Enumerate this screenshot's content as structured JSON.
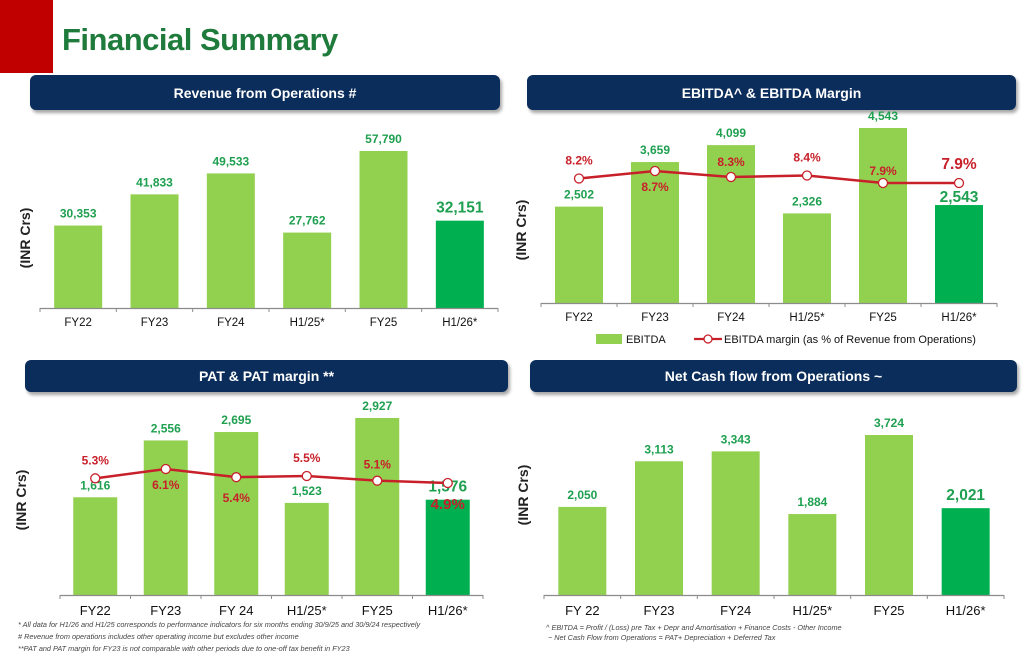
{
  "page": {
    "title": "Financial Summary",
    "accent_colors": {
      "title_green": "#1E7B3C",
      "header_navy": "#0B2D5B",
      "red_block": "#C00000",
      "bar_light_green": "#92D050",
      "bar_dark_green": "#00B050",
      "value_label_green": "#1FA050",
      "margin_red": "#C8202A"
    }
  },
  "footnotes_left": [
    "* All data for H1/26 and H1/25 corresponds to performance indicators for six months ending 30/9/25 and 30/9/24 respectively",
    "# Revenue from operations includes other operating income but excludes other income",
    "**PAT and PAT margin for FY23 is not comparable with other periods due to one-off tax benefit in FY23"
  ],
  "footnotes_right": [
    "^ EBITDA = Profit / (Loss) pre Tax + Depr and Amortisation + Finance Costs - Other Income",
    "~ Net Cash Flow from Operations = PAT+ Depreciation + Deferred Tax"
  ],
  "chart_data": [
    {
      "id": "revenue",
      "type": "bar",
      "title": "Revenue from Operations #",
      "ylabel": "(INR Crs)",
      "xlabel": "",
      "categories": [
        "FY22",
        "FY23",
        "FY24",
        "H1/25*",
        "FY25",
        "H1/26*"
      ],
      "values": [
        30353,
        41833,
        49533,
        27762,
        57790,
        32151
      ],
      "value_labels": [
        "30,353",
        "41,833",
        "49,533",
        "27,762",
        "57,790",
        "32,151"
      ],
      "highlight_index": 5,
      "ylim": [
        0,
        60000
      ],
      "grid": false,
      "legend": null
    },
    {
      "id": "ebitda",
      "type": "bar",
      "title": "EBITDA^ & EBITDA Margin",
      "ylabel": "(INR Crs)",
      "xlabel": "",
      "categories": [
        "FY22",
        "FY23",
        "FY24",
        "H1/25*",
        "FY25",
        "H1/26*"
      ],
      "series": [
        {
          "name": "EBITDA",
          "type": "bar",
          "values": [
            2502,
            3659,
            4099,
            2326,
            4543,
            2543
          ],
          "value_labels": [
            "2,502",
            "3,659",
            "4,099",
            "2,326",
            "4,543",
            "2,543"
          ]
        },
        {
          "name": "EBITDA margin (as % of Revenue from Operations)",
          "type": "line",
          "values": [
            8.2,
            8.7,
            8.3,
            8.4,
            7.9,
            7.9
          ],
          "value_labels": [
            "8.2%",
            "8.7%",
            "8.3%",
            "8.4%",
            "7.9%",
            "7.9%"
          ]
        }
      ],
      "highlight_index": 5,
      "ylim": [
        0,
        4700
      ],
      "grid": false,
      "legend": "bottom"
    },
    {
      "id": "pat",
      "type": "bar",
      "title": "PAT & PAT margin **",
      "ylabel": "(INR Crs)",
      "xlabel": "",
      "categories": [
        "FY22",
        "FY23",
        "FY 24",
        "H1/25*",
        "FY25",
        "H1/26*"
      ],
      "series": [
        {
          "name": "PAT",
          "type": "bar",
          "values": [
            1616,
            2556,
            2695,
            1523,
            2927,
            1576
          ],
          "value_labels": [
            "1,616",
            "2,556",
            "2,695",
            "1,523",
            "2,927",
            "1,576"
          ]
        },
        {
          "name": "PAT margin",
          "type": "line",
          "values": [
            5.3,
            6.1,
            5.4,
            5.5,
            5.1,
            4.9
          ],
          "value_labels": [
            "5.3%",
            "6.1%",
            "5.4%",
            "5.5%",
            "5.1%",
            "4.9%"
          ]
        }
      ],
      "highlight_index": 5,
      "ylim": [
        0,
        3000
      ],
      "grid": false,
      "legend": null
    },
    {
      "id": "cashflow",
      "type": "bar",
      "title": "Net Cash flow from Operations ~",
      "ylabel": "(INR Crs)",
      "xlabel": "",
      "categories": [
        "FY 22",
        "FY23",
        "FY24",
        "H1/25*",
        "FY25",
        "H1/26*"
      ],
      "values": [
        2050,
        3113,
        3343,
        1884,
        3724,
        2021
      ],
      "value_labels": [
        "2,050",
        "3,113",
        "3,343",
        "1,884",
        "3,724",
        "2,021"
      ],
      "highlight_index": 5,
      "ylim": [
        0,
        4000
      ],
      "grid": false,
      "legend": null
    }
  ]
}
